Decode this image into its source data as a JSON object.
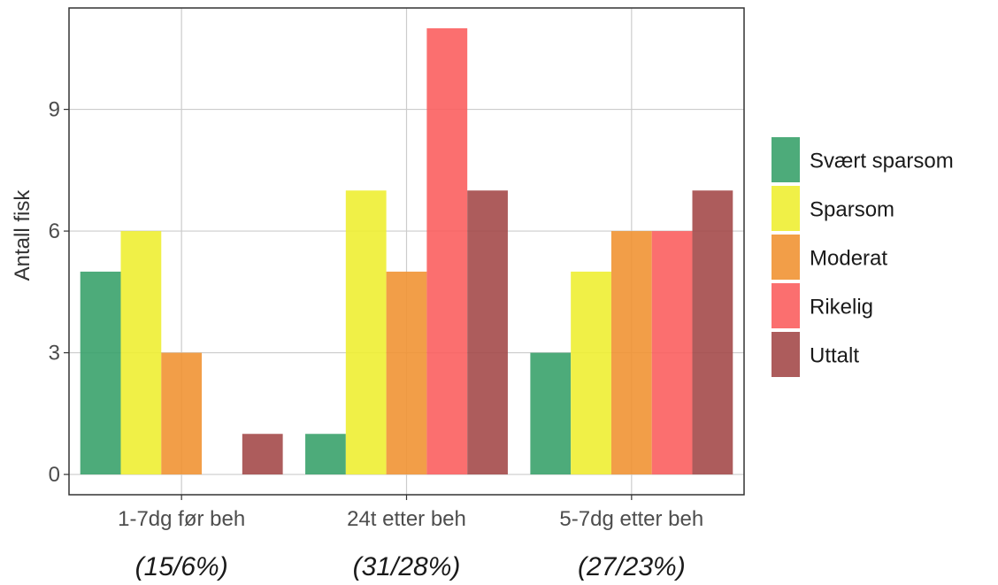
{
  "chart_data": {
    "type": "bar",
    "categories": [
      "1-7dg før beh",
      "24t etter beh",
      "5-7dg etter beh"
    ],
    "category_notes": [
      "(15/6%)",
      "(31/28%)",
      "(27/23%)"
    ],
    "series": [
      {
        "name": "Svært sparsom",
        "color": "#3aa26b",
        "values": [
          5,
          1,
          3
        ]
      },
      {
        "name": "Sparsom",
        "color": "#eeee33",
        "values": [
          6,
          7,
          5
        ]
      },
      {
        "name": "Moderat",
        "color": "#f19334",
        "values": [
          3,
          5,
          6
        ]
      },
      {
        "name": "Rikelig",
        "color": "#fb5f5f",
        "values": [
          0,
          11,
          6
        ]
      },
      {
        "name": "Uttalt",
        "color": "#a44a4a",
        "values": [
          1,
          7,
          7
        ]
      }
    ],
    "xlabel": "",
    "ylabel": "Antall fisk",
    "ylim": [
      -0.5,
      11.5
    ],
    "yticks": [
      0,
      3,
      6,
      9
    ],
    "grid": true,
    "legend_position": "right"
  }
}
